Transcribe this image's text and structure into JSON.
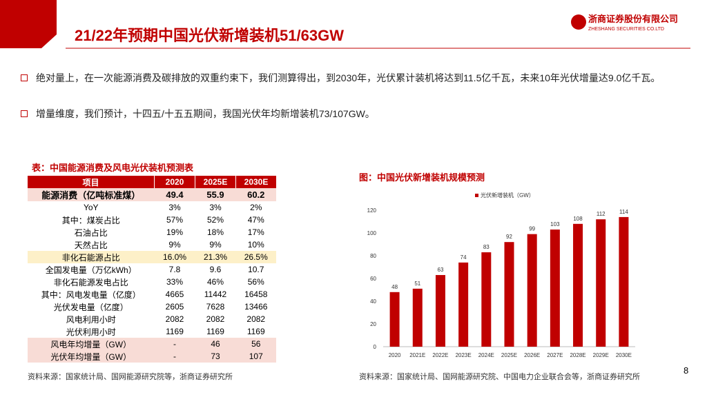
{
  "header": {
    "title": "21/22年预期中国光伏新增装机51/63GW",
    "logo_cn": "浙商证券股份有限公司",
    "logo_en": "ZHESHANG SECURITIES CO.LTD"
  },
  "bullets": [
    "绝对量上，在一次能源消费及碳排放的双重约束下，我们测算得出，到2030年，光伏累计装机将达到11.5亿千瓦，未来10年光伏增量达9.0亿千瓦。",
    "增量维度，我们预计，十四五/十五五期间，我国光伏年均新增装机73/107GW。"
  ],
  "table": {
    "title": "表：中国能源消费及风电光伏装机预测表",
    "header": [
      "项目",
      "2020",
      "2025E",
      "2030E"
    ],
    "rows": [
      [
        "能源消费（亿吨标准煤）",
        "49.4",
        "55.9",
        "60.2"
      ],
      [
        "YoY",
        "3%",
        "3%",
        "2%"
      ],
      [
        "其中：煤炭占比",
        "57%",
        "52%",
        "47%"
      ],
      [
        "石油占比",
        "19%",
        "18%",
        "17%"
      ],
      [
        "天然占比",
        "9%",
        "9%",
        "10%"
      ],
      [
        "非化石能源占比",
        "16.0%",
        "21.3%",
        "26.5%"
      ],
      [
        "全国发电量（万亿kWh）",
        "7.8",
        "9.6",
        "10.7"
      ],
      [
        "非化石能源发电占比",
        "33%",
        "46%",
        "56%"
      ],
      [
        "其中：风电发电量（亿度）",
        "4665",
        "11442",
        "16458"
      ],
      [
        "光伏发电量（亿度）",
        "2605",
        "7628",
        "13466"
      ],
      [
        "风电利用小时",
        "2082",
        "2082",
        "2082"
      ],
      [
        "光伏利用小时",
        "1169",
        "1169",
        "1169"
      ],
      [
        "风电年均增量（GW）",
        "-",
        "46",
        "56"
      ],
      [
        "光伏年均增量（GW）",
        "-",
        "73",
        "107"
      ]
    ]
  },
  "chart_data": {
    "type": "bar",
    "title": "图：中国光伏新增装机规模预测",
    "categories": [
      "2020",
      "2021E",
      "2022E",
      "2023E",
      "2024E",
      "2025E",
      "2026E",
      "2027E",
      "2028E",
      "2029E",
      "2030E"
    ],
    "series": [
      {
        "name": "光伏新增装机（GW）",
        "color": "#c00000",
        "values": [
          48,
          51,
          63,
          74,
          83,
          92,
          99,
          103,
          108,
          112,
          114
        ]
      }
    ],
    "ylim": [
      0,
      120
    ],
    "yticks": [
      0,
      20,
      40,
      60,
      80,
      100,
      120
    ],
    "legend": "top",
    "data_labels": true
  },
  "sources": [
    "资料来源：国家统计局、国网能源研究院等，浙商证券研究所",
    "资料来源：国家统计局、国网能源研究院、中国电力企业联合会等，浙商证券研究所"
  ],
  "page_number": "8"
}
